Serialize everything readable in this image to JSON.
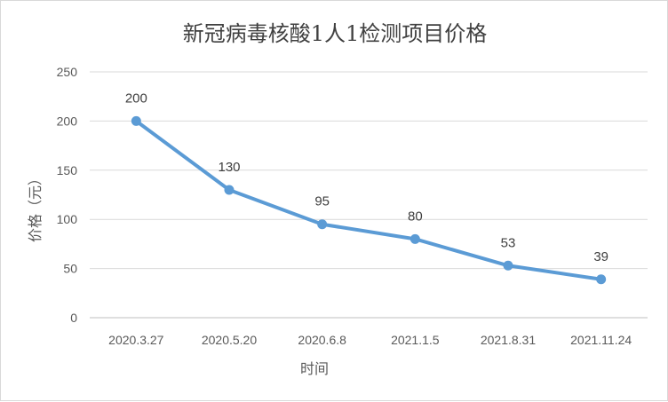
{
  "chart_data": {
    "type": "line",
    "title": "新冠病毒核酸1人1检测项目价格",
    "xlabel": "时间",
    "ylabel": "价格（元）",
    "categories": [
      "2020.3.27",
      "2020.5.20",
      "2020.6.8",
      "2021.1.5",
      "2021.8.31",
      "2021.11.24"
    ],
    "series": [
      {
        "values": [
          200,
          130,
          95,
          80,
          53,
          39
        ],
        "color": "#5b9bd5"
      }
    ],
    "ylim": [
      0,
      250
    ],
    "yticks": [
      0,
      50,
      100,
      150,
      200,
      250
    ],
    "grid": true,
    "legend": "none"
  }
}
